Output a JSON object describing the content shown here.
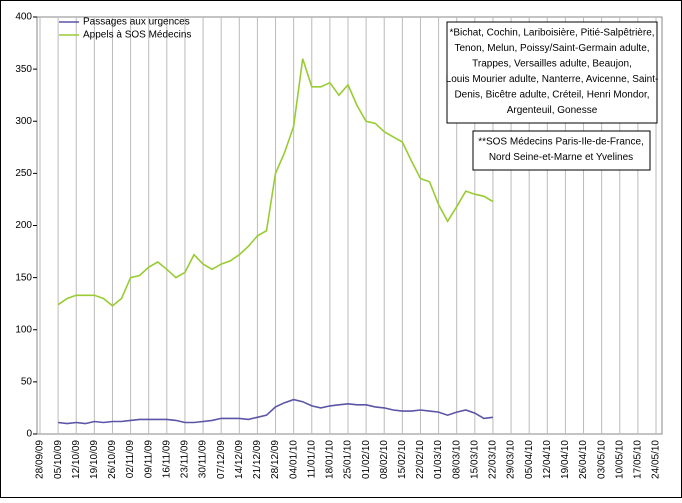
{
  "chart_data": {
    "type": "line",
    "categories": [
      "28/09/09",
      null,
      "05/10/09",
      null,
      "12/10/09",
      null,
      "19/10/09",
      null,
      "26/10/09",
      null,
      "02/11/09",
      null,
      "09/11/09",
      null,
      "16/11/09",
      null,
      "23/11/09",
      null,
      "30/11/09",
      null,
      "07/12/09",
      null,
      "14/12/09",
      null,
      "21/12/09",
      null,
      "28/12/09",
      null,
      "04/01/10",
      null,
      "11/01/10",
      null,
      "18/01/10",
      null,
      "25/01/10",
      null,
      "01/02/10",
      null,
      "08/02/10",
      null,
      "15/02/10",
      null,
      "22/02/10",
      null,
      "01/03/10",
      null,
      "08/03/10",
      null,
      "15/03/10",
      null,
      "22/03/10",
      null,
      "29/03/10",
      null,
      "05/04/10",
      null,
      "12/04/10",
      null,
      "19/04/10",
      null,
      "26/04/10",
      null,
      "03/05/10",
      null,
      "10/05/10",
      null,
      "17/05/10",
      null,
      "24/05/10"
    ],
    "series": [
      {
        "name": "Passages aux urgences",
        "color": "#5b55a6",
        "values": [
          null,
          null,
          11,
          10,
          11,
          10,
          12,
          11,
          12,
          12,
          13,
          14,
          14,
          14,
          14,
          13,
          11,
          11,
          12,
          13,
          15,
          15,
          15,
          14,
          16,
          18,
          26,
          30,
          33,
          31,
          27,
          25,
          27,
          28,
          29,
          28,
          28,
          26,
          25,
          23,
          22,
          22,
          23,
          22,
          21,
          18,
          21,
          23,
          20,
          15,
          16,
          null,
          null,
          null,
          null,
          null,
          null,
          null,
          null,
          null,
          null,
          null,
          null,
          null,
          null,
          null,
          null,
          null,
          null
        ]
      },
      {
        "name": "Appels à SOS Médecins",
        "color": "#99cc33",
        "values": [
          null,
          null,
          124,
          130,
          133,
          133,
          133,
          130,
          123,
          130,
          150,
          152,
          160,
          165,
          158,
          150,
          155,
          172,
          163,
          158,
          163,
          166,
          172,
          180,
          190,
          195,
          250,
          270,
          295,
          360,
          333,
          333,
          337,
          325,
          335,
          315,
          300,
          298,
          290,
          285,
          280,
          262,
          245,
          242,
          220,
          204,
          218,
          233,
          230,
          228,
          223,
          null,
          null,
          null,
          null,
          null,
          null,
          null,
          null,
          null,
          null,
          null,
          null,
          null,
          null,
          null,
          null,
          null,
          null
        ]
      }
    ],
    "ylim": [
      0,
      400
    ],
    "yticks": [
      0,
      50,
      100,
      150,
      200,
      250,
      300,
      350,
      400
    ],
    "grid": true,
    "legend": "top-left",
    "annotations": [
      [
        "*Bichat, Cochin, Lariboisière, Pitié-Salpêtrière,",
        "Tenon, Melun, Poissy/Saint-Germain adulte,",
        "Trappes, Versailles adulte, Beaujon,",
        "Louis Mourier adulte, Nanterre, Avicenne, Saint-",
        "Denis, Bicêtre adulte, Créteil, Henri Mondor,",
        "Argenteuil, Gonesse"
      ],
      [
        "**SOS Médecins Paris-Ile-de-France,",
        "Nord Seine-et-Marne et Yvelines"
      ]
    ]
  }
}
